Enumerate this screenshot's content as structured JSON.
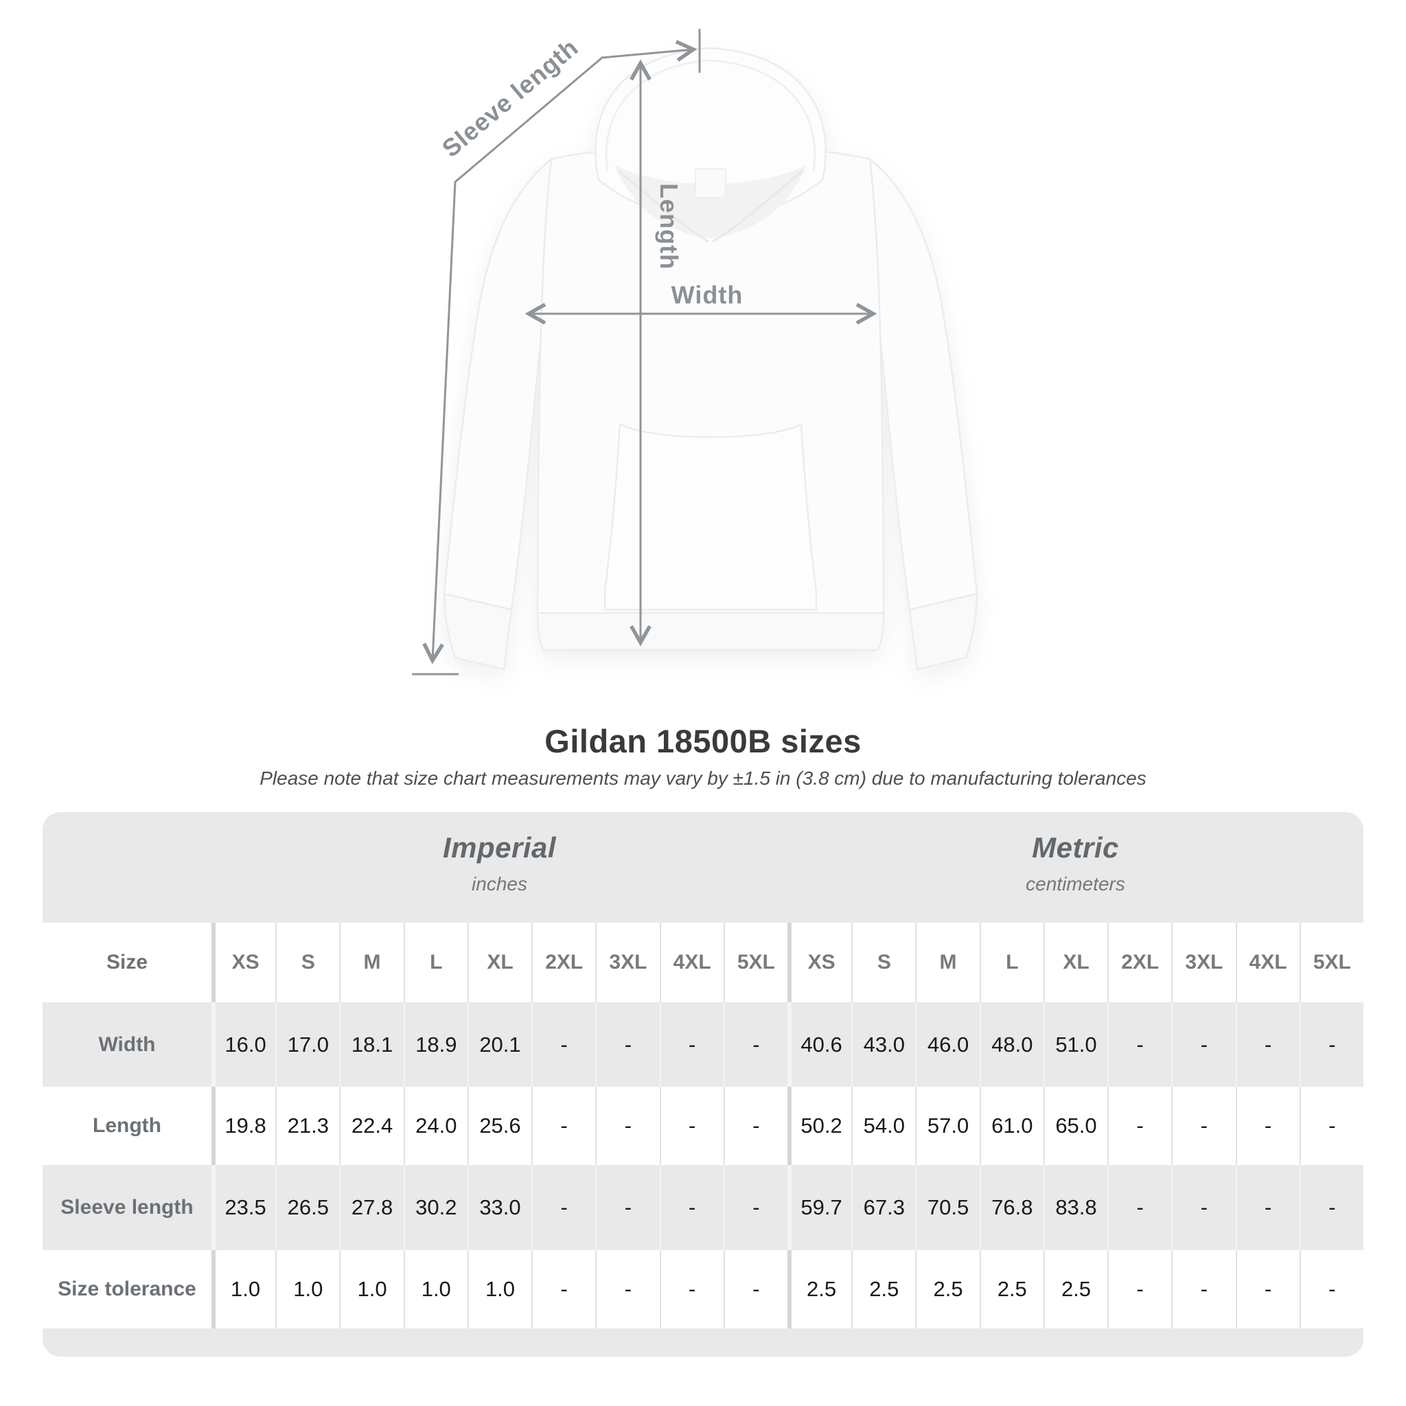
{
  "figure": {
    "annotations": {
      "sleeve_length": "Sleeve length",
      "length": "Length",
      "width": "Width"
    },
    "annotation_color": "#8f9499"
  },
  "header": {
    "title": "Gildan 18500B sizes",
    "subtitle": "Please note that size chart measurements may vary by ±1.5 in (3.8 cm) due to manufacturing tolerances"
  },
  "table": {
    "unit_groups": [
      {
        "name": "Imperial",
        "unit": "inches"
      },
      {
        "name": "Metric",
        "unit": "centimeters"
      }
    ],
    "size_header": "Size",
    "sizes": [
      "XS",
      "S",
      "M",
      "L",
      "XL",
      "2XL",
      "3XL",
      "4XL",
      "5XL"
    ],
    "rows": [
      {
        "label": "Width",
        "imperial": [
          "16.0",
          "17.0",
          "18.1",
          "18.9",
          "20.1",
          "-",
          "-",
          "-",
          "-"
        ],
        "metric": [
          "40.6",
          "43.0",
          "46.0",
          "48.0",
          "51.0",
          "-",
          "-",
          "-",
          "-"
        ]
      },
      {
        "label": "Length",
        "imperial": [
          "19.8",
          "21.3",
          "22.4",
          "24.0",
          "25.6",
          "-",
          "-",
          "-",
          "-"
        ],
        "metric": [
          "50.2",
          "54.0",
          "57.0",
          "61.0",
          "65.0",
          "-",
          "-",
          "-",
          "-"
        ]
      },
      {
        "label": "Sleeve length",
        "imperial": [
          "23.5",
          "26.5",
          "27.8",
          "30.2",
          "33.0",
          "-",
          "-",
          "-",
          "-"
        ],
        "metric": [
          "59.7",
          "67.3",
          "70.5",
          "76.8",
          "83.8",
          "-",
          "-",
          "-",
          "-"
        ]
      },
      {
        "label": "Size tolerance",
        "imperial": [
          "1.0",
          "1.0",
          "1.0",
          "1.0",
          "1.0",
          "-",
          "-",
          "-",
          "-"
        ],
        "metric": [
          "2.5",
          "2.5",
          "2.5",
          "2.5",
          "2.5",
          "-",
          "-",
          "-",
          "-"
        ]
      }
    ]
  },
  "colors": {
    "page_bg": "#ffffff",
    "table_bg": "#e9e9e9",
    "row_white": "#ffffff",
    "row_gray": "#e9e9e9",
    "value_text": "#191919",
    "row_label_text": "#6c7176",
    "unit_header_text": "#62686d",
    "title_text": "#3a3a3a",
    "annotation_gray": "#90959a"
  }
}
